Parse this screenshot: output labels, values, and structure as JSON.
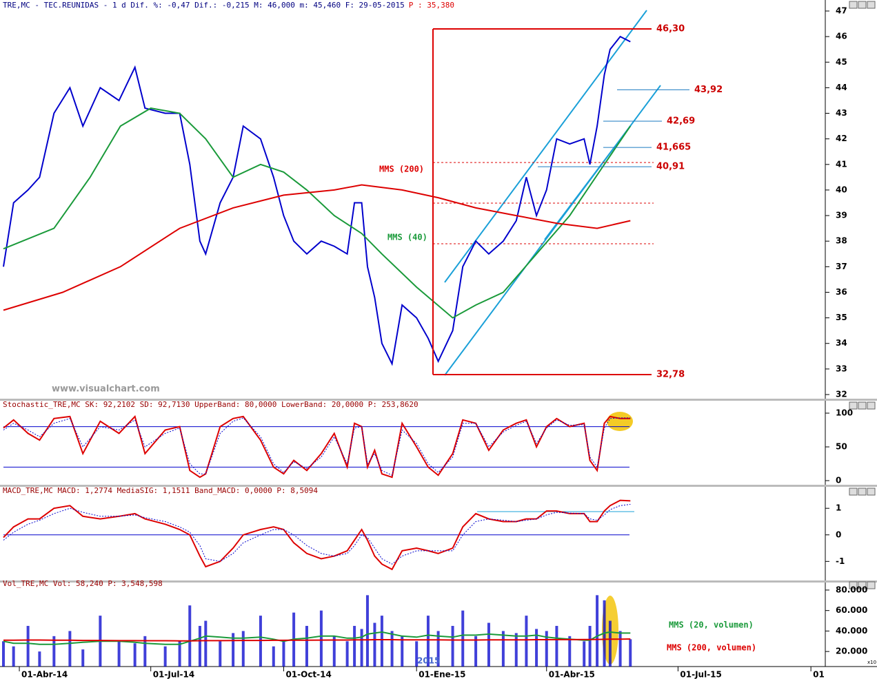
{
  "chart_data": [
    {
      "type": "line",
      "title": "TRE,MC - TEC.REUNIDAS - 1 d Dif. %: -0,47 Dif.: -0,215 M: 46,000 m: 45,460 F: 29-05-2015",
      "title_note": "P : 35,380",
      "watermark": "www.visualchart.com",
      "xlim": [
        "2014-03-21",
        "2015-10-10"
      ],
      "ylim": [
        32,
        47
      ],
      "yticks": [
        32,
        33,
        34,
        35,
        36,
        37,
        38,
        39,
        40,
        41,
        42,
        43,
        44,
        45,
        46,
        47
      ],
      "x": [
        "2014-03-21",
        "2014-03-28",
        "2014-04-07",
        "2014-04-15",
        "2014-04-25",
        "2014-05-06",
        "2014-05-15",
        "2014-05-27",
        "2014-06-09",
        "2014-06-20",
        "2014-06-27",
        "2014-07-11",
        "2014-07-21",
        "2014-07-28",
        "2014-08-04",
        "2014-08-08",
        "2014-08-18",
        "2014-08-27",
        "2014-09-03",
        "2014-09-15",
        "2014-09-24",
        "2014-10-01",
        "2014-10-08",
        "2014-10-17",
        "2014-10-27",
        "2014-11-05",
        "2014-11-14",
        "2014-11-19",
        "2014-11-24",
        "2014-11-28",
        "2014-12-03",
        "2014-12-08",
        "2014-12-15",
        "2014-12-22",
        "2015-01-01",
        "2015-01-09",
        "2015-01-16",
        "2015-01-26",
        "2015-02-02",
        "2015-02-11",
        "2015-02-20",
        "2015-03-02",
        "2015-03-11",
        "2015-03-18",
        "2015-03-25",
        "2015-04-01",
        "2015-04-08",
        "2015-04-17",
        "2015-04-27",
        "2015-05-01",
        "2015-05-06",
        "2015-05-11",
        "2015-05-15",
        "2015-05-22",
        "2015-05-29"
      ],
      "series": [
        {
          "color": "#0000cc",
          "values": [
            37.0,
            39.5,
            40.0,
            40.5,
            43.0,
            44.0,
            42.5,
            44.0,
            43.5,
            44.8,
            43.2,
            43.0,
            43.0,
            41.0,
            38.0,
            37.5,
            39.5,
            40.5,
            42.5,
            42.0,
            40.5,
            39.0,
            38.0,
            37.5,
            38.0,
            37.8,
            37.5,
            39.5,
            39.5,
            37.0,
            35.8,
            34.0,
            33.2,
            35.5,
            35.0,
            34.2,
            33.3,
            34.5,
            37.0,
            38.0,
            37.5,
            38.0,
            38.8,
            40.5,
            39.0,
            40.0,
            42.0,
            41.8,
            42.0,
            41.0,
            42.5,
            44.5,
            45.5,
            46.0,
            45.8
          ]
        },
        {
          "name": "MMS (40)",
          "color": "#1a9a3a",
          "x": [
            "2014-03-21",
            "2014-04-25",
            "2014-05-20",
            "2014-06-10",
            "2014-07-01",
            "2014-07-21",
            "2014-08-08",
            "2014-08-27",
            "2014-09-15",
            "2014-10-01",
            "2014-10-17",
            "2014-11-05",
            "2014-11-24",
            "2014-12-08",
            "2015-01-01",
            "2015-01-26",
            "2015-02-11",
            "2015-03-02",
            "2015-03-25",
            "2015-04-17",
            "2015-05-11",
            "2015-05-29"
          ],
          "values": [
            37.7,
            38.5,
            40.5,
            42.5,
            43.2,
            43.0,
            42.0,
            40.5,
            41.0,
            40.7,
            40.0,
            39.0,
            38.3,
            37.5,
            36.2,
            35.0,
            35.5,
            36.0,
            37.5,
            39.0,
            41.0,
            42.5
          ]
        },
        {
          "name": "MMS (200)",
          "color": "#dd0000",
          "x": [
            "2014-03-21",
            "2014-05-01",
            "2014-06-10",
            "2014-07-21",
            "2014-08-27",
            "2014-10-01",
            "2014-11-05",
            "2014-11-24",
            "2014-12-22",
            "2015-01-16",
            "2015-02-11",
            "2015-03-11",
            "2015-04-08",
            "2015-05-06",
            "2015-05-29"
          ],
          "values": [
            35.3,
            36.0,
            37.0,
            38.5,
            39.3,
            39.8,
            40.0,
            40.2,
            40.0,
            39.7,
            39.3,
            39.0,
            38.7,
            38.5,
            38.8
          ]
        }
      ],
      "levels": [
        {
          "value": 46.3,
          "label": "46,30"
        },
        {
          "value": 43.92,
          "label": "43,92"
        },
        {
          "value": 42.69,
          "label": "42,69"
        },
        {
          "value": 41.665,
          "label": "41,665"
        },
        {
          "value": 40.91,
          "label": "40,91"
        },
        {
          "value": 32.78,
          "label": "32,78"
        }
      ]
    },
    {
      "type": "line",
      "title": "Stochastic_TRE,MC SK: 92,2102 SD: 92,7130 UpperBand: 80,0000 LowerBand: 20,0000 P: 253,8620",
      "xlim": [
        "2014-03-21",
        "2015-10-10"
      ],
      "ylim": [
        0,
        100
      ],
      "yticks": [
        0,
        50,
        100
      ],
      "bands": [
        80,
        20
      ],
      "x": [
        "2014-03-21",
        "2014-03-28",
        "2014-04-07",
        "2014-04-15",
        "2014-04-25",
        "2014-05-06",
        "2014-05-15",
        "2014-05-27",
        "2014-06-09",
        "2014-06-20",
        "2014-06-27",
        "2014-07-11",
        "2014-07-21",
        "2014-07-28",
        "2014-08-04",
        "2014-08-08",
        "2014-08-18",
        "2014-08-27",
        "2014-09-03",
        "2014-09-15",
        "2014-09-24",
        "2014-10-01",
        "2014-10-08",
        "2014-10-17",
        "2014-10-27",
        "2014-11-05",
        "2014-11-14",
        "2014-11-19",
        "2014-11-24",
        "2014-11-28",
        "2014-12-03",
        "2014-12-08",
        "2014-12-15",
        "2014-12-22",
        "2015-01-01",
        "2015-01-09",
        "2015-01-16",
        "2015-01-26",
        "2015-02-02",
        "2015-02-11",
        "2015-02-20",
        "2015-03-02",
        "2015-03-11",
        "2015-03-18",
        "2015-03-25",
        "2015-04-01",
        "2015-04-08",
        "2015-04-17",
        "2015-04-27",
        "2015-05-01",
        "2015-05-06",
        "2015-05-11",
        "2015-05-15",
        "2015-05-22",
        "2015-05-29"
      ],
      "series": [
        {
          "color": "#dd0000",
          "values": [
            78,
            90,
            70,
            60,
            92,
            95,
            40,
            88,
            70,
            95,
            40,
            75,
            80,
            15,
            5,
            10,
            80,
            92,
            95,
            60,
            20,
            10,
            30,
            15,
            40,
            70,
            20,
            85,
            80,
            20,
            45,
            10,
            5,
            85,
            50,
            20,
            8,
            40,
            90,
            85,
            45,
            75,
            85,
            90,
            50,
            80,
            92,
            80,
            85,
            30,
            15,
            85,
            95,
            92,
            92
          ]
        },
        {
          "color": "#0000cc",
          "dashed": true,
          "values": [
            75,
            85,
            75,
            65,
            85,
            92,
            50,
            80,
            75,
            90,
            50,
            70,
            78,
            25,
            10,
            10,
            70,
            88,
            93,
            65,
            25,
            12,
            28,
            18,
            35,
            65,
            25,
            78,
            80,
            25,
            40,
            15,
            8,
            75,
            55,
            25,
            12,
            35,
            85,
            85,
            50,
            72,
            82,
            88,
            55,
            78,
            90,
            82,
            83,
            35,
            20,
            78,
            92,
            93,
            93
          ]
        }
      ]
    },
    {
      "type": "line",
      "title": "MACD_TRE,MC MACD: 1,2774 MediaSIG: 1,1511 Band_MACD: 0,0000 P: 8,5094",
      "xlim": [
        "2014-03-21",
        "2015-10-10"
      ],
      "ylim": [
        -1.64,
        1.42
      ],
      "yticks": [
        1,
        0,
        -1
      ],
      "zero_line": true,
      "x": [
        "2014-03-21",
        "2014-03-28",
        "2014-04-07",
        "2014-04-15",
        "2014-04-25",
        "2014-05-06",
        "2014-05-15",
        "2014-05-27",
        "2014-06-09",
        "2014-06-20",
        "2014-06-27",
        "2014-07-11",
        "2014-07-21",
        "2014-07-28",
        "2014-08-04",
        "2014-08-08",
        "2014-08-18",
        "2014-08-27",
        "2014-09-03",
        "2014-09-15",
        "2014-09-24",
        "2014-10-01",
        "2014-10-08",
        "2014-10-17",
        "2014-10-27",
        "2014-11-05",
        "2014-11-14",
        "2014-11-19",
        "2014-11-24",
        "2014-11-28",
        "2014-12-03",
        "2014-12-08",
        "2014-12-15",
        "2014-12-22",
        "2015-01-01",
        "2015-01-09",
        "2015-01-16",
        "2015-01-26",
        "2015-02-02",
        "2015-02-11",
        "2015-02-20",
        "2015-03-02",
        "2015-03-11",
        "2015-03-18",
        "2015-03-25",
        "2015-04-01",
        "2015-04-08",
        "2015-04-17",
        "2015-04-27",
        "2015-05-01",
        "2015-05-06",
        "2015-05-11",
        "2015-05-15",
        "2015-05-22",
        "2015-05-29"
      ],
      "series": [
        {
          "color": "#dd0000",
          "values": [
            -0.1,
            0.3,
            0.6,
            0.6,
            1.0,
            1.1,
            0.7,
            0.6,
            0.7,
            0.8,
            0.6,
            0.4,
            0.2,
            0.0,
            -0.8,
            -1.2,
            -1.0,
            -0.5,
            0.0,
            0.2,
            0.3,
            0.2,
            -0.3,
            -0.7,
            -0.9,
            -0.8,
            -0.6,
            -0.2,
            0.2,
            -0.2,
            -0.8,
            -1.1,
            -1.3,
            -0.6,
            -0.5,
            -0.6,
            -0.7,
            -0.5,
            0.3,
            0.8,
            0.6,
            0.5,
            0.5,
            0.6,
            0.6,
            0.9,
            0.9,
            0.8,
            0.8,
            0.5,
            0.5,
            0.9,
            1.1,
            1.3,
            1.28
          ]
        },
        {
          "color": "#0000cc",
          "dashed": true,
          "values": [
            -0.2,
            0.1,
            0.4,
            0.55,
            0.8,
            1.0,
            0.85,
            0.7,
            0.7,
            0.75,
            0.65,
            0.5,
            0.3,
            0.1,
            -0.4,
            -0.9,
            -1.0,
            -0.7,
            -0.3,
            0.0,
            0.2,
            0.2,
            0.0,
            -0.4,
            -0.7,
            -0.8,
            -0.7,
            -0.4,
            0.0,
            -0.1,
            -0.5,
            -0.9,
            -1.1,
            -0.8,
            -0.6,
            -0.6,
            -0.6,
            -0.6,
            0.0,
            0.5,
            0.6,
            0.55,
            0.5,
            0.55,
            0.6,
            0.75,
            0.85,
            0.82,
            0.8,
            0.6,
            0.55,
            0.75,
            0.95,
            1.1,
            1.15
          ]
        }
      ]
    },
    {
      "type": "bar",
      "title": "Vol_TRE,MC Vol: 58,240 P: 3,548,598",
      "color": "#0000cc",
      "axis_note": "x10",
      "year_label": "2015",
      "xlim": [
        "2014-03-21",
        "2015-10-10"
      ],
      "ylim": [
        5300,
        81300
      ],
      "yticks": [
        {
          "value": 20000,
          "label": "20.000"
        },
        {
          "value": 40000,
          "label": "40.000"
        },
        {
          "value": 60000,
          "label": "60.000"
        },
        {
          "value": 80000,
          "label": "80.000"
        }
      ],
      "xticks": [
        {
          "value": "2014-04-01",
          "label": "01-Abr-14"
        },
        {
          "value": "2014-07-01",
          "label": "01-Jul-14"
        },
        {
          "value": "2014-10-01",
          "label": "01-Oct-14"
        },
        {
          "value": "2015-01-01",
          "label": "01-Ene-15"
        },
        {
          "value": "2015-04-01",
          "label": "01-Abr-15"
        },
        {
          "value": "2015-07-01",
          "label": "01-Jul-15"
        },
        {
          "value": "2015-10-01",
          "label": "01"
        }
      ],
      "x": [
        "2014-03-21",
        "2014-03-28",
        "2014-04-07",
        "2014-04-15",
        "2014-04-25",
        "2014-05-06",
        "2014-05-15",
        "2014-05-27",
        "2014-06-09",
        "2014-06-20",
        "2014-06-27",
        "2014-07-11",
        "2014-07-21",
        "2014-07-28",
        "2014-08-04",
        "2014-08-08",
        "2014-08-18",
        "2014-08-27",
        "2014-09-03",
        "2014-09-15",
        "2014-09-24",
        "2014-10-01",
        "2014-10-08",
        "2014-10-17",
        "2014-10-27",
        "2014-11-05",
        "2014-11-14",
        "2014-11-19",
        "2014-11-24",
        "2014-11-28",
        "2014-12-03",
        "2014-12-08",
        "2014-12-15",
        "2014-12-22",
        "2015-01-01",
        "2015-01-09",
        "2015-01-16",
        "2015-01-26",
        "2015-02-02",
        "2015-02-11",
        "2015-02-20",
        "2015-03-02",
        "2015-03-11",
        "2015-03-18",
        "2015-03-25",
        "2015-04-01",
        "2015-04-08",
        "2015-04-17",
        "2015-04-27",
        "2015-05-01",
        "2015-05-06",
        "2015-05-11",
        "2015-05-15",
        "2015-05-22",
        "2015-05-29"
      ],
      "values": [
        30000,
        25000,
        45000,
        20000,
        35000,
        40000,
        22000,
        55000,
        30000,
        28000,
        35000,
        25000,
        30000,
        65000,
        45000,
        50000,
        30000,
        38000,
        40000,
        55000,
        25000,
        30000,
        58000,
        45000,
        60000,
        35000,
        30000,
        45000,
        42000,
        75000,
        48000,
        55000,
        40000,
        35000,
        30000,
        55000,
        40000,
        45000,
        60000,
        35000,
        48000,
        40000,
        38000,
        55000,
        42000,
        40000,
        45000,
        35000,
        30000,
        45000,
        75000,
        70000,
        50000,
        40000,
        32000
      ],
      "series": [
        {
          "name": "MMS (20, volumen)",
          "color": "#1a9a3a",
          "values": [
            30000,
            28000,
            28000,
            27000,
            27000,
            28000,
            29000,
            30000,
            30000,
            29000,
            28000,
            27000,
            27000,
            30000,
            33000,
            35000,
            34000,
            33000,
            33000,
            34000,
            32000,
            30000,
            32000,
            33000,
            35000,
            35000,
            33000,
            33000,
            34000,
            37000,
            38000,
            39000,
            37000,
            35000,
            34000,
            36000,
            35000,
            34000,
            36000,
            36000,
            37000,
            36000,
            35000,
            35000,
            36000,
            34000,
            33000,
            32000,
            31000,
            31000,
            35000,
            38000,
            39000,
            38000,
            38000
          ]
        },
        {
          "name": "MMS (200, volumen)",
          "color": "#dd0000",
          "values": [
            31000,
            31000,
            31200,
            31200,
            31000,
            31000,
            30800,
            30800,
            30600,
            30600,
            30500,
            30500,
            30400,
            30400,
            30500,
            30600,
            30600,
            30700,
            30800,
            30800,
            30900,
            30900,
            31000,
            31000,
            31100,
            31200,
            31200,
            31300,
            31400,
            31400,
            31500,
            31500,
            31500,
            31400,
            31400,
            31300,
            31300,
            31200,
            31200,
            31200,
            31300,
            31300,
            31400,
            31400,
            31500,
            31500,
            31600,
            31600,
            31700,
            31700,
            31800,
            31900,
            32000,
            32100,
            32200
          ]
        }
      ]
    }
  ]
}
